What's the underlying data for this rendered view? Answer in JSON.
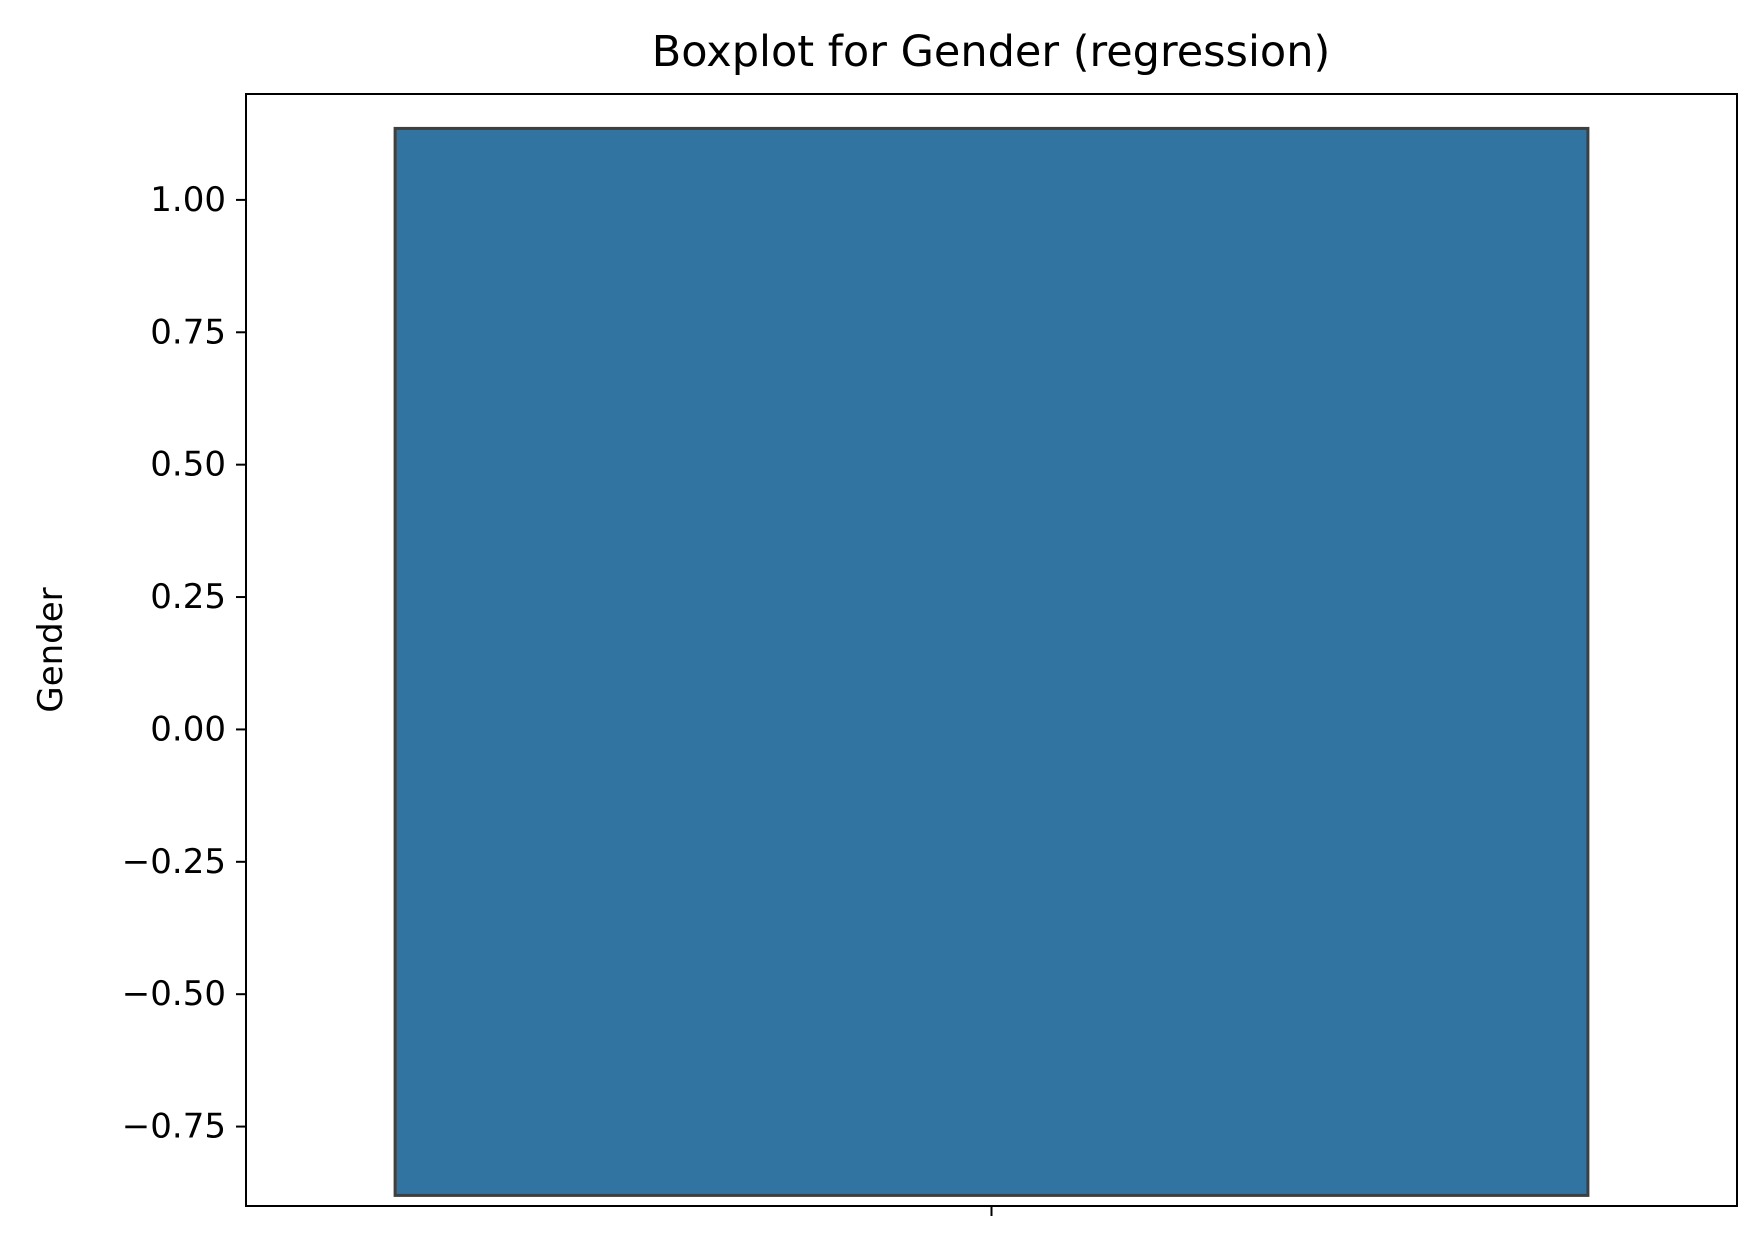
{
  "chart_data": {
    "type": "boxplot",
    "title": "Boxplot for Gender (regression)",
    "xlabel": "",
    "ylabel": "Gender",
    "ylim": [
      -0.9,
      1.2
    ],
    "yticks": [
      1.0,
      0.75,
      0.5,
      0.25,
      0.0,
      -0.25,
      -0.5,
      -0.75
    ],
    "ytick_labels": [
      "1.00",
      "0.75",
      "0.50",
      "0.25",
      "0.00",
      "−0.25",
      "−0.50",
      "−0.75"
    ],
    "xticks": [
      ""
    ],
    "grid": false,
    "box": {
      "q1": -0.88,
      "q3": 1.135,
      "fill_color": "#3274a1",
      "edge_color": "#3f3f3f"
    }
  }
}
